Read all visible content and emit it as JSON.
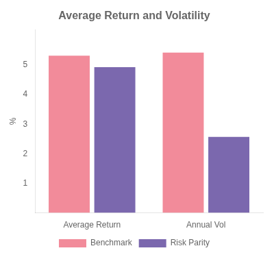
{
  "chart_data": {
    "type": "bar",
    "title": "Average Return and Volatility",
    "categories": [
      "Average Return",
      "Annual Vol"
    ],
    "series": [
      {
        "name": "Benchmark",
        "color": "#F28B9A",
        "values": [
          5.32,
          5.42
        ]
      },
      {
        "name": "Risk Parity",
        "color": "#7B68AE",
        "values": [
          4.93,
          2.57
        ]
      }
    ],
    "ylabel": "%",
    "ylim": [
      0,
      6.2
    ],
    "yticks": [
      1,
      2,
      3,
      4,
      5
    ],
    "grid": false,
    "legend": "bottom"
  }
}
